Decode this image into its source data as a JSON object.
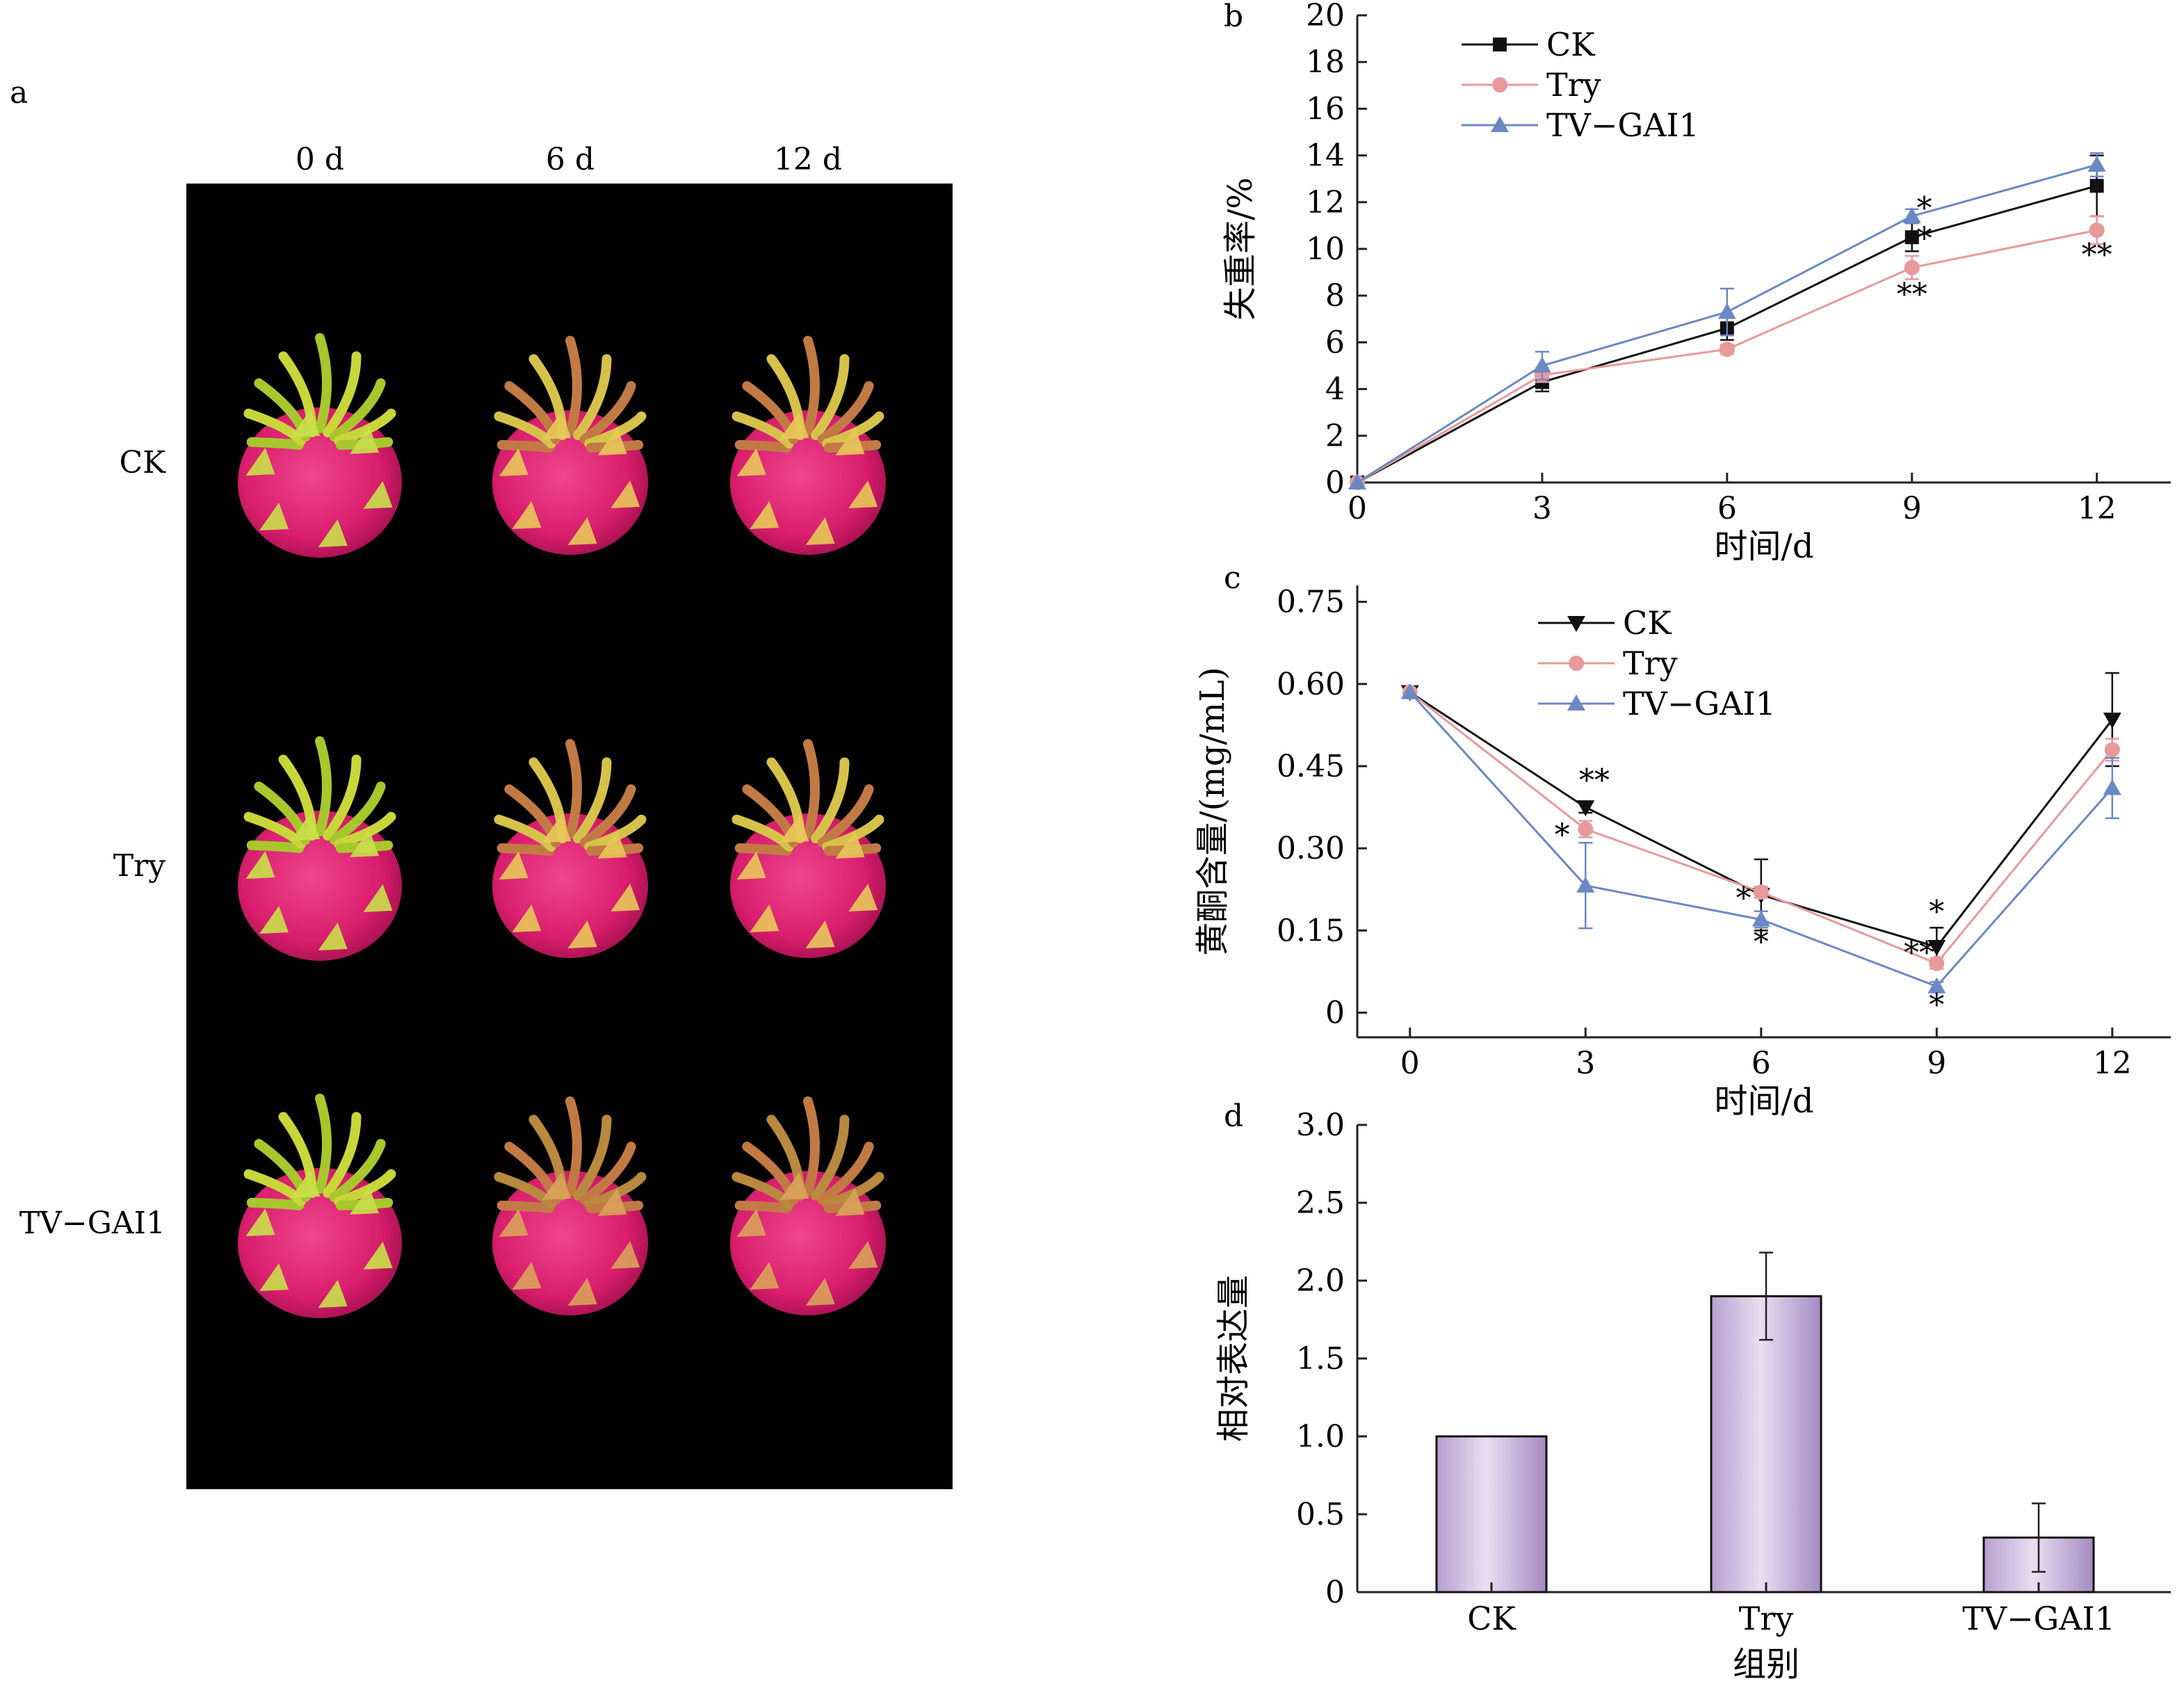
{
  "panel_a": {
    "label": "a",
    "columns": [
      "0 d",
      "6 d",
      "12 d"
    ],
    "rows": [
      "CK",
      "Try",
      "TV−GAI1"
    ]
  },
  "chart_data": [
    {
      "panel": "b",
      "type": "line",
      "xlabel": "时间/d",
      "ylabel": "失重率/%",
      "xticks": [
        0,
        3,
        6,
        9,
        12
      ],
      "xlim": [
        0,
        13.2
      ],
      "ylim": [
        0,
        20
      ],
      "yticks": [
        0,
        2,
        4,
        6,
        8,
        10,
        12,
        14,
        16,
        18,
        20
      ],
      "legend_position": "top-left",
      "series": [
        {
          "name": "CK",
          "color": "#111111",
          "marker": "square",
          "x": [
            0,
            3,
            6,
            9,
            12
          ],
          "y": [
            0,
            4.3,
            6.6,
            10.5,
            12.7
          ],
          "err": [
            0,
            0.4,
            0.5,
            0.6,
            1.3
          ]
        },
        {
          "name": "Try",
          "color": "#e8999a",
          "marker": "circle",
          "x": [
            0,
            3,
            6,
            9,
            12
          ],
          "y": [
            0,
            4.6,
            5.7,
            9.2,
            10.8
          ],
          "err": [
            0,
            0.3,
            0.2,
            0.5,
            0.6
          ]
        },
        {
          "name": "TV−GAI1",
          "color": "#6b88c4",
          "marker": "triangle",
          "x": [
            0,
            3,
            6,
            9,
            12
          ],
          "y": [
            0,
            5.0,
            7.3,
            11.4,
            13.6
          ],
          "err": [
            0,
            0.6,
            1.0,
            0.3,
            0.5
          ]
        }
      ],
      "annotations": [
        {
          "text": "*",
          "x": 9.2,
          "y": 11.3
        },
        {
          "text": "*",
          "x": 9.2,
          "y": 10.0
        },
        {
          "text": "**",
          "x": 9.0,
          "y": 7.6
        },
        {
          "text": "**",
          "x": 12.0,
          "y": 9.3
        }
      ]
    },
    {
      "panel": "c",
      "type": "line",
      "xlabel": "时间/d",
      "ylabel": "黄酮含量/(mg/mL)",
      "xticks": [
        0,
        3,
        6,
        9,
        12
      ],
      "xlim": [
        -0.9,
        13.0
      ],
      "ylim": [
        -0.045,
        0.78
      ],
      "yticks": [
        0,
        0.15,
        0.3,
        0.45,
        0.6,
        0.75
      ],
      "yticklabels": [
        "0",
        "0.15",
        "0.30",
        "0.45",
        "0.60",
        "0.75"
      ],
      "legend_position": "top-center",
      "series": [
        {
          "name": "CK",
          "color": "#111111",
          "marker": "triangle-down",
          "x": [
            0,
            3,
            6,
            9,
            12
          ],
          "y": [
            0.585,
            0.375,
            0.215,
            0.12,
            0.535
          ],
          "err": [
            0,
            0.01,
            0.065,
            0.035,
            0.085
          ]
        },
        {
          "name": "Try",
          "color": "#e8999a",
          "marker": "circle",
          "x": [
            0,
            3,
            6,
            9,
            12
          ],
          "y": [
            0.585,
            0.335,
            0.22,
            0.09,
            0.48
          ],
          "err": [
            0,
            0.015,
            0.01,
            0.01,
            0.02
          ]
        },
        {
          "name": "TV−GAI1",
          "color": "#6b88c4",
          "marker": "triangle",
          "x": [
            0,
            3,
            6,
            9,
            12
          ],
          "y": [
            0.585,
            0.232,
            0.17,
            0.048,
            0.41
          ],
          "err": [
            0,
            0.078,
            0.015,
            0.008,
            0.055
          ]
        }
      ],
      "annotations": [
        {
          "text": "**",
          "x": 3.15,
          "y": 0.405
        },
        {
          "text": "*",
          "x": 2.6,
          "y": 0.305
        },
        {
          "text": "*",
          "x": 5.7,
          "y": 0.19
        },
        {
          "text": "*",
          "x": 6.0,
          "y": 0.11
        },
        {
          "text": "*",
          "x": 9.0,
          "y": 0.165
        },
        {
          "text": "**",
          "x": 8.7,
          "y": 0.09
        },
        {
          "text": "*",
          "x": 9.0,
          "y": -0.005
        }
      ]
    },
    {
      "panel": "d",
      "type": "bar",
      "xlabel": "组别",
      "ylabel": "相对表达量",
      "categories": [
        "CK",
        "Try",
        "TV−GAI1"
      ],
      "values": [
        1.0,
        1.9,
        0.35
      ],
      "errors": [
        0,
        0.28,
        0.22
      ],
      "ylim": [
        0,
        3.0
      ],
      "yticks": [
        0,
        0.5,
        1.0,
        1.5,
        2.0,
        2.5,
        3.0
      ],
      "yticklabels": [
        "0",
        "0.5",
        "1.0",
        "1.5",
        "2.0",
        "2.5",
        "3.0"
      ],
      "bar_color": "#d9cbe4"
    }
  ]
}
